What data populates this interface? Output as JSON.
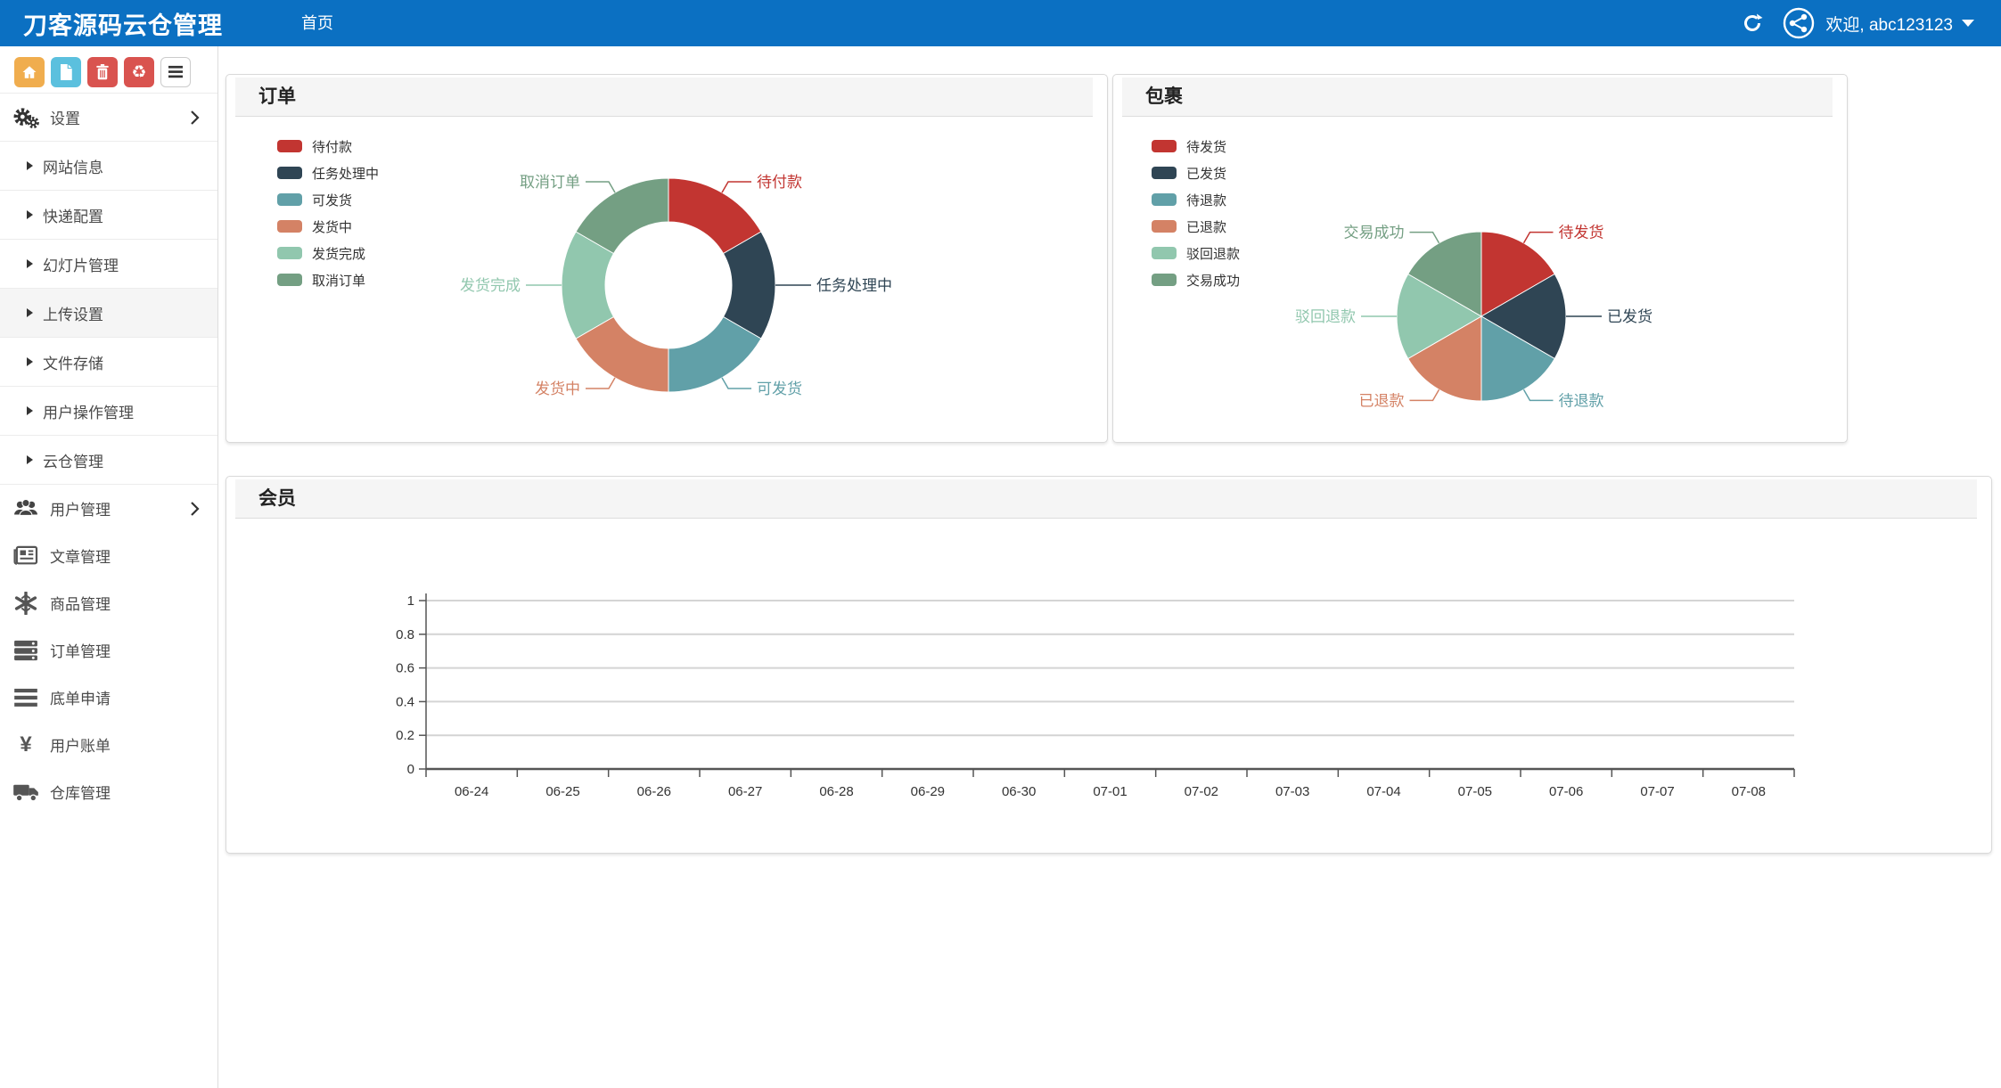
{
  "navbar": {
    "brand": "刀客源码云仓管理",
    "menu_items": [
      {
        "name": "home",
        "label": "首页"
      }
    ],
    "welcome_text": "欢迎, abc123123",
    "colors": {
      "bg": "#0b70c2",
      "text": "#ffffff"
    }
  },
  "sidebar": {
    "toolbar": [
      {
        "name": "home-button",
        "icon": "home-icon",
        "color": "#f0ad4e"
      },
      {
        "name": "file-button",
        "icon": "file-icon",
        "color": "#5bc0de"
      },
      {
        "name": "trash-button",
        "icon": "trash-icon",
        "color": "#d9534f"
      },
      {
        "name": "recycle-button",
        "icon": "recycle-icon",
        "color": "#d9534f"
      },
      {
        "name": "list-button",
        "icon": "list-icon",
        "color": "#ffffff"
      }
    ],
    "items": [
      {
        "name": "settings",
        "label": "设置",
        "icon": "gears-icon",
        "type": "parent",
        "chevron": true
      },
      {
        "name": "site-info",
        "label": "网站信息",
        "type": "sub"
      },
      {
        "name": "express-config",
        "label": "快递配置",
        "type": "sub"
      },
      {
        "name": "slideshow-management",
        "label": "幻灯片管理",
        "type": "sub"
      },
      {
        "name": "upload-settings",
        "label": "上传设置",
        "type": "sub",
        "active": true
      },
      {
        "name": "file-storage",
        "label": "文件存储",
        "type": "sub"
      },
      {
        "name": "user-operation-management",
        "label": "用户操作管理",
        "type": "sub"
      },
      {
        "name": "cloud-warehouse-management",
        "label": "云仓管理",
        "type": "sub"
      },
      {
        "name": "user-management",
        "label": "用户管理",
        "icon": "users-icon",
        "type": "parent",
        "chevron": true,
        "group_start": true
      },
      {
        "name": "article-management",
        "label": "文章管理",
        "icon": "newspaper-icon",
        "type": "item"
      },
      {
        "name": "product-management",
        "label": "商品管理",
        "icon": "asterisk-icon",
        "type": "item"
      },
      {
        "name": "order-management",
        "label": "订单管理",
        "icon": "server-icon",
        "type": "item"
      },
      {
        "name": "receipt-application",
        "label": "底单申请",
        "icon": "bars-icon",
        "type": "item"
      },
      {
        "name": "user-bill",
        "label": "用户账单",
        "icon": "yen-icon",
        "type": "item"
      },
      {
        "name": "warehouse-management",
        "label": "仓库管理",
        "icon": "truck-icon",
        "type": "item"
      }
    ]
  },
  "panels": {
    "orders": {
      "title": "订单"
    },
    "packages": {
      "title": "包裹"
    },
    "members": {
      "title": "会员"
    }
  },
  "chart_data": [
    {
      "id": "orders",
      "type": "pie",
      "variant": "donut",
      "title": "订单",
      "labels": [
        "待付款",
        "任务处理中",
        "可发货",
        "发货中",
        "发货完成",
        "取消订单"
      ],
      "values": [
        1,
        1,
        1,
        1,
        1,
        1
      ],
      "note": "six equal 60-degree slices, labels on leader lines",
      "colors": [
        "#c23531",
        "#2f4554",
        "#61a0a8",
        "#d48265",
        "#91c7ae",
        "#749f83"
      ],
      "legend_position": "left"
    },
    {
      "id": "packages",
      "type": "pie",
      "variant": "pie",
      "title": "包裹",
      "labels": [
        "待发货",
        "已发货",
        "待退款",
        "已退款",
        "驳回退款",
        "交易成功"
      ],
      "values": [
        1,
        1,
        1,
        1,
        1,
        1
      ],
      "note": "six equal 60-degree slices, labels on leader lines",
      "colors": [
        "#c23531",
        "#2f4554",
        "#61a0a8",
        "#d48265",
        "#91c7ae",
        "#749f83"
      ],
      "legend_position": "left"
    },
    {
      "id": "members",
      "type": "line",
      "title": "会员",
      "x": [
        "06-24",
        "06-25",
        "06-26",
        "06-27",
        "06-28",
        "06-29",
        "06-30",
        "07-01",
        "07-02",
        "07-03",
        "07-04",
        "07-05",
        "07-06",
        "07-07",
        "07-08"
      ],
      "series": [],
      "ylabel": "",
      "xlabel": "",
      "ylim": [
        0,
        1
      ],
      "yticks": [
        0,
        0.2,
        0.4,
        0.6,
        0.8,
        1
      ],
      "grid": true,
      "legend_position": "none"
    }
  ]
}
